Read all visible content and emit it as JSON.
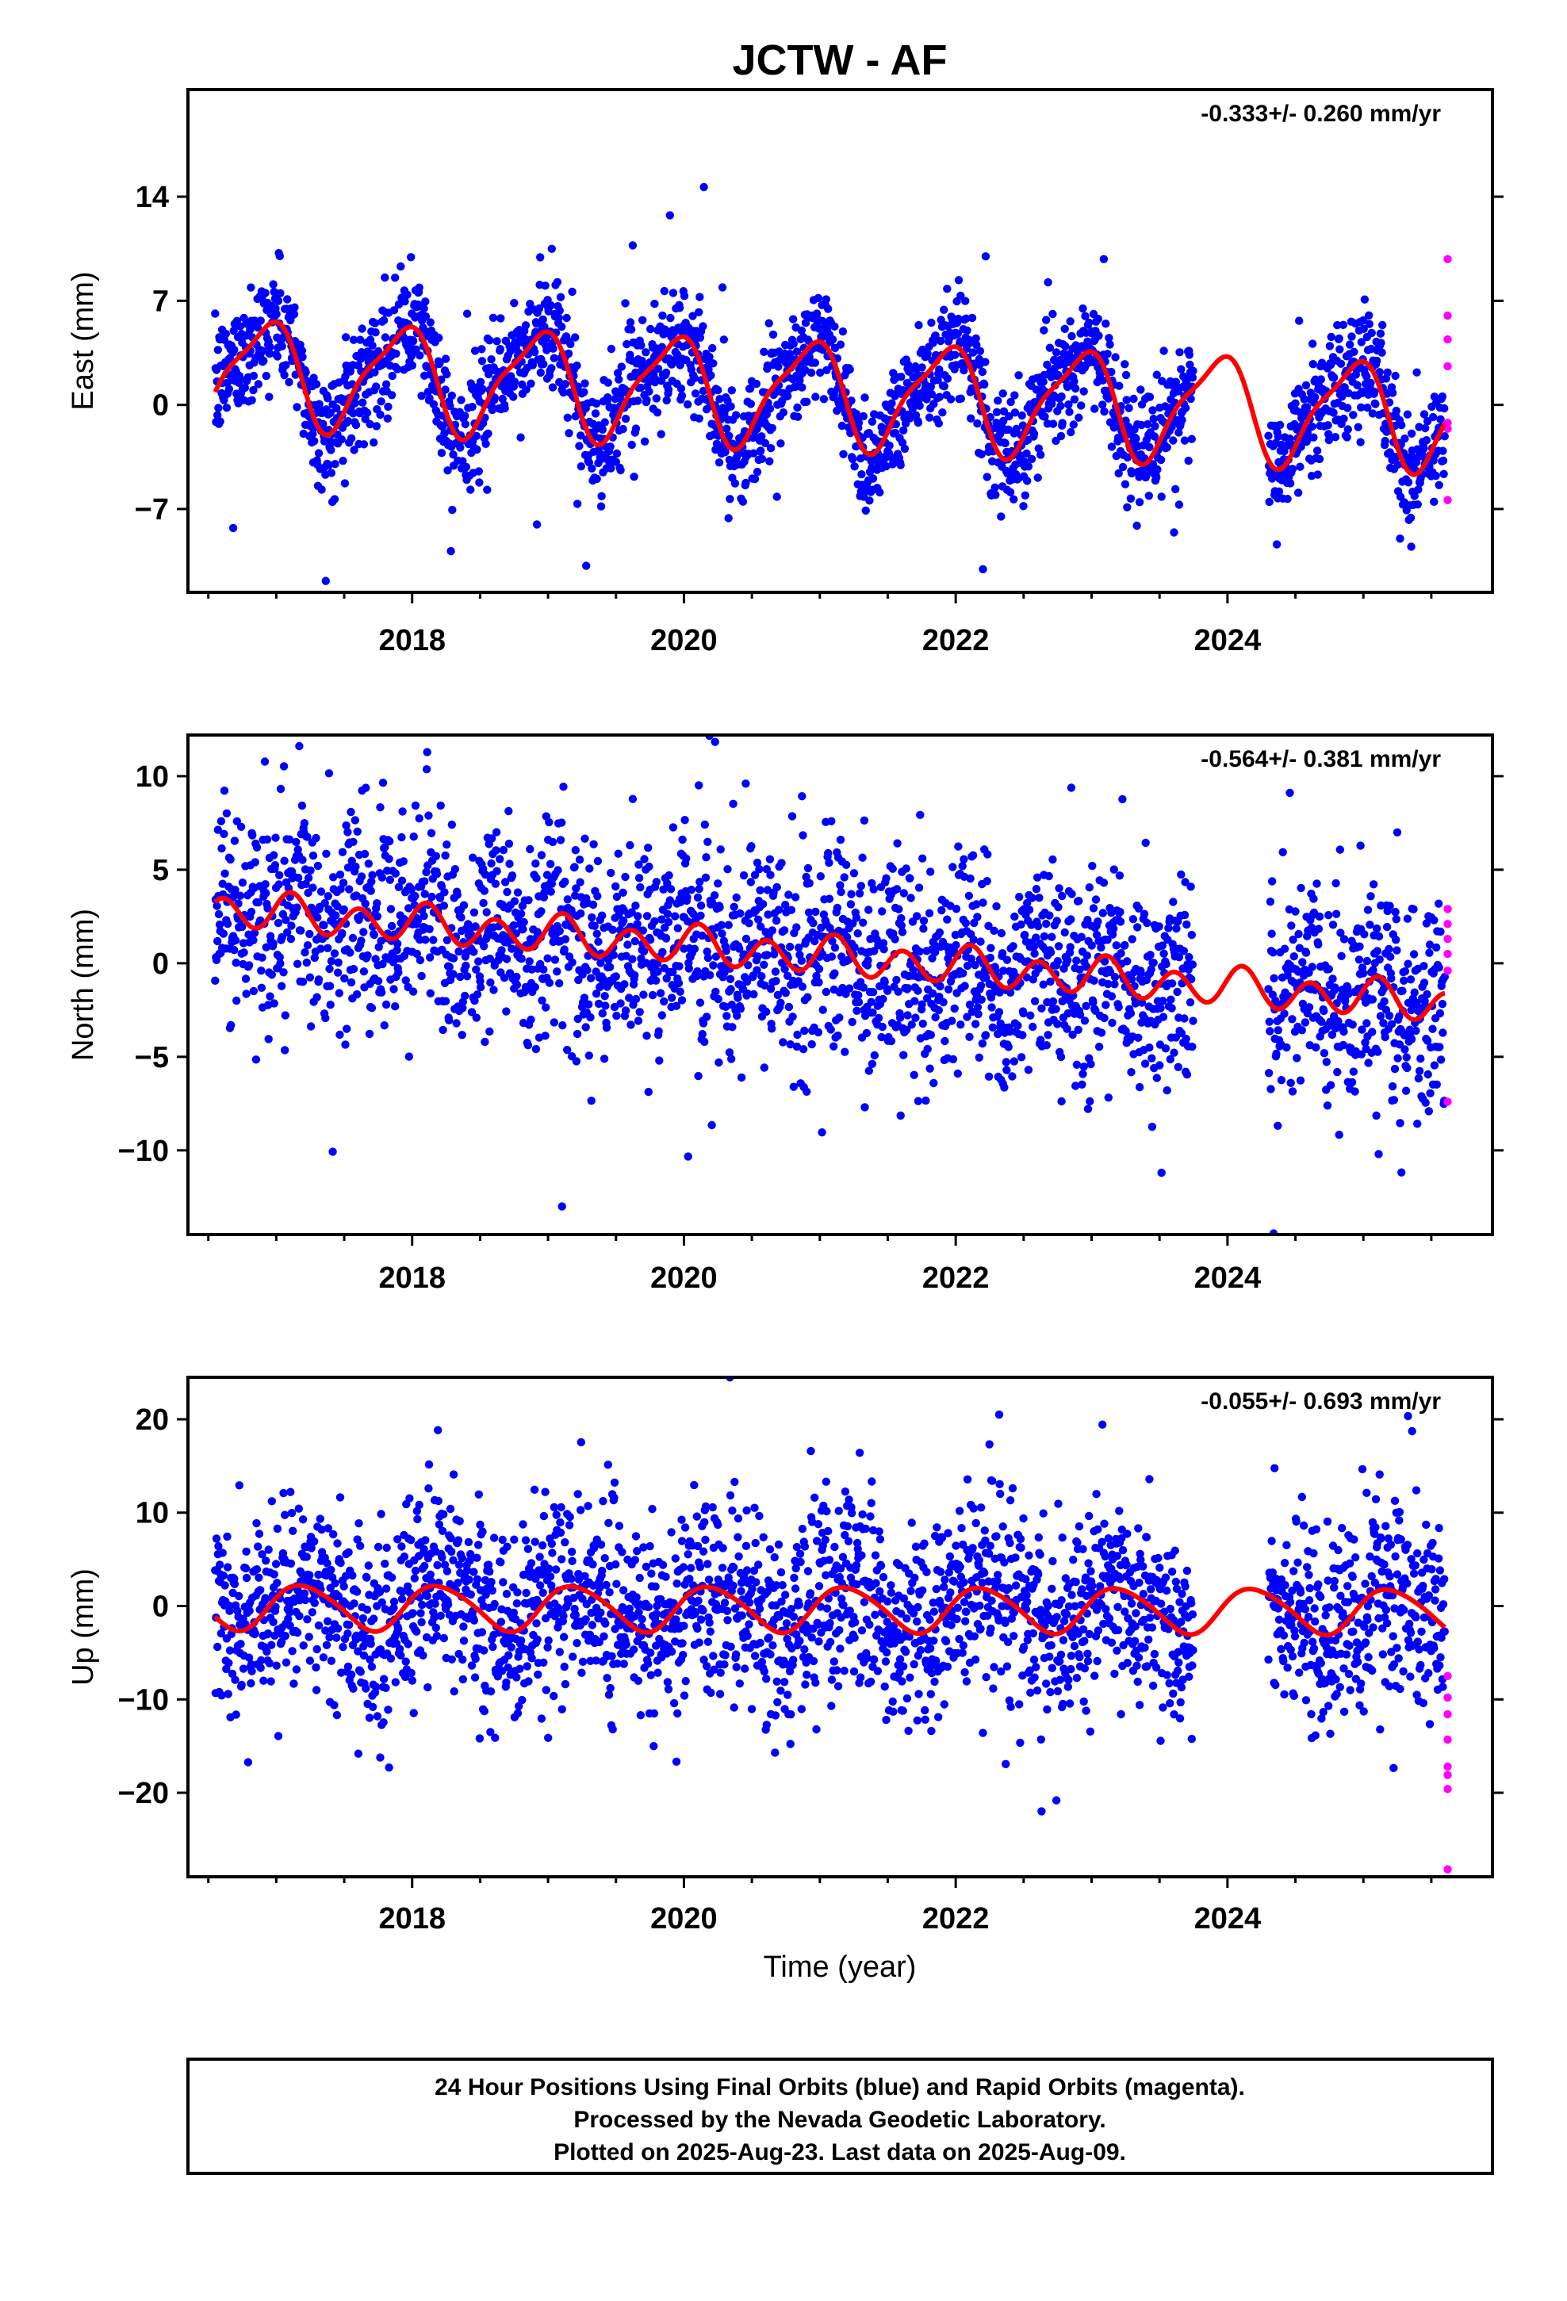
{
  "title": "JCTW - AF",
  "xlabel": "Time (year)",
  "footer": {
    "line1": "24 Hour Positions Using Final Orbits (blue) and Rapid Orbits (magenta).",
    "line2": "Processed by the Nevada Geodetic Laboratory.",
    "line3": "Plotted on 2025-Aug-23. Last data on 2025-Aug-09."
  },
  "colors": {
    "final": "#0000ff",
    "rapid": "#ff00ff",
    "model": "#ff0000",
    "axis": "#000000"
  },
  "chart_data": [
    {
      "type": "scatter",
      "panel": "east",
      "ylabel": "East (mm)",
      "rate_text": "-0.333+/- 0.260 mm/yr",
      "xlim": [
        2016.35,
        2025.95
      ],
      "ylim": [
        -12.6,
        21.2
      ],
      "xticks": [
        2018,
        2020,
        2022,
        2024
      ],
      "yticks": [
        -7,
        0,
        7,
        14
      ],
      "data_start": 2016.55,
      "data_end": 2025.6,
      "gap": [
        2023.75,
        2024.3
      ],
      "rate_mm_yr": -0.333,
      "model": {
        "offset": 0.8,
        "amp1": 3.4,
        "phase1": 2.1,
        "amp2": 0.9,
        "phase2": 0.6
      },
      "scatter_sd": 1.9,
      "rapid_values": [
        9.8,
        6.0,
        4.4,
        2.6,
        -1.2,
        -1.6,
        -6.4
      ]
    },
    {
      "type": "scatter",
      "panel": "north",
      "ylabel": "North (mm)",
      "rate_text": "-0.564+/- 0.381 mm/yr",
      "xlim": [
        2016.35,
        2025.95
      ],
      "ylim": [
        -14.5,
        12.2
      ],
      "xticks": [
        2018,
        2020,
        2022,
        2024
      ],
      "yticks": [
        -10,
        -5,
        0,
        5,
        10
      ],
      "data_start": 2016.55,
      "data_end": 2025.6,
      "gap": [
        2023.75,
        2024.3
      ],
      "rate_mm_yr": -0.564,
      "model": {
        "offset": 0.4,
        "amp1": 0.3,
        "phase1": 1.0,
        "amp2": 0.9,
        "phase2": 0.2
      },
      "scatter_sd": 2.8,
      "rapid_values": [
        2.9,
        2.1,
        1.3,
        0.5,
        -0.4,
        -7.4
      ]
    },
    {
      "type": "scatter",
      "panel": "up",
      "ylabel": "Up (mm)",
      "rate_text": "-0.055+/- 0.693 mm/yr",
      "xlim": [
        2016.35,
        2025.95
      ],
      "ylim": [
        -29.0,
        24.5
      ],
      "xticks": [
        2018,
        2020,
        2022,
        2024
      ],
      "yticks": [
        -20,
        -10,
        0,
        10,
        20
      ],
      "data_start": 2016.55,
      "data_end": 2025.6,
      "gap": [
        2023.75,
        2024.3
      ],
      "rate_mm_yr": -0.055,
      "model": {
        "offset": -0.3,
        "amp1": 2.4,
        "phase1": 0.3,
        "amp2": 0.3,
        "phase2": 1.2
      },
      "scatter_sd": 5.2,
      "rapid_values": [
        -7.5,
        -9.8,
        -11.6,
        -14.3,
        -17.2,
        -18.1,
        -19.6,
        -28.2
      ]
    }
  ]
}
